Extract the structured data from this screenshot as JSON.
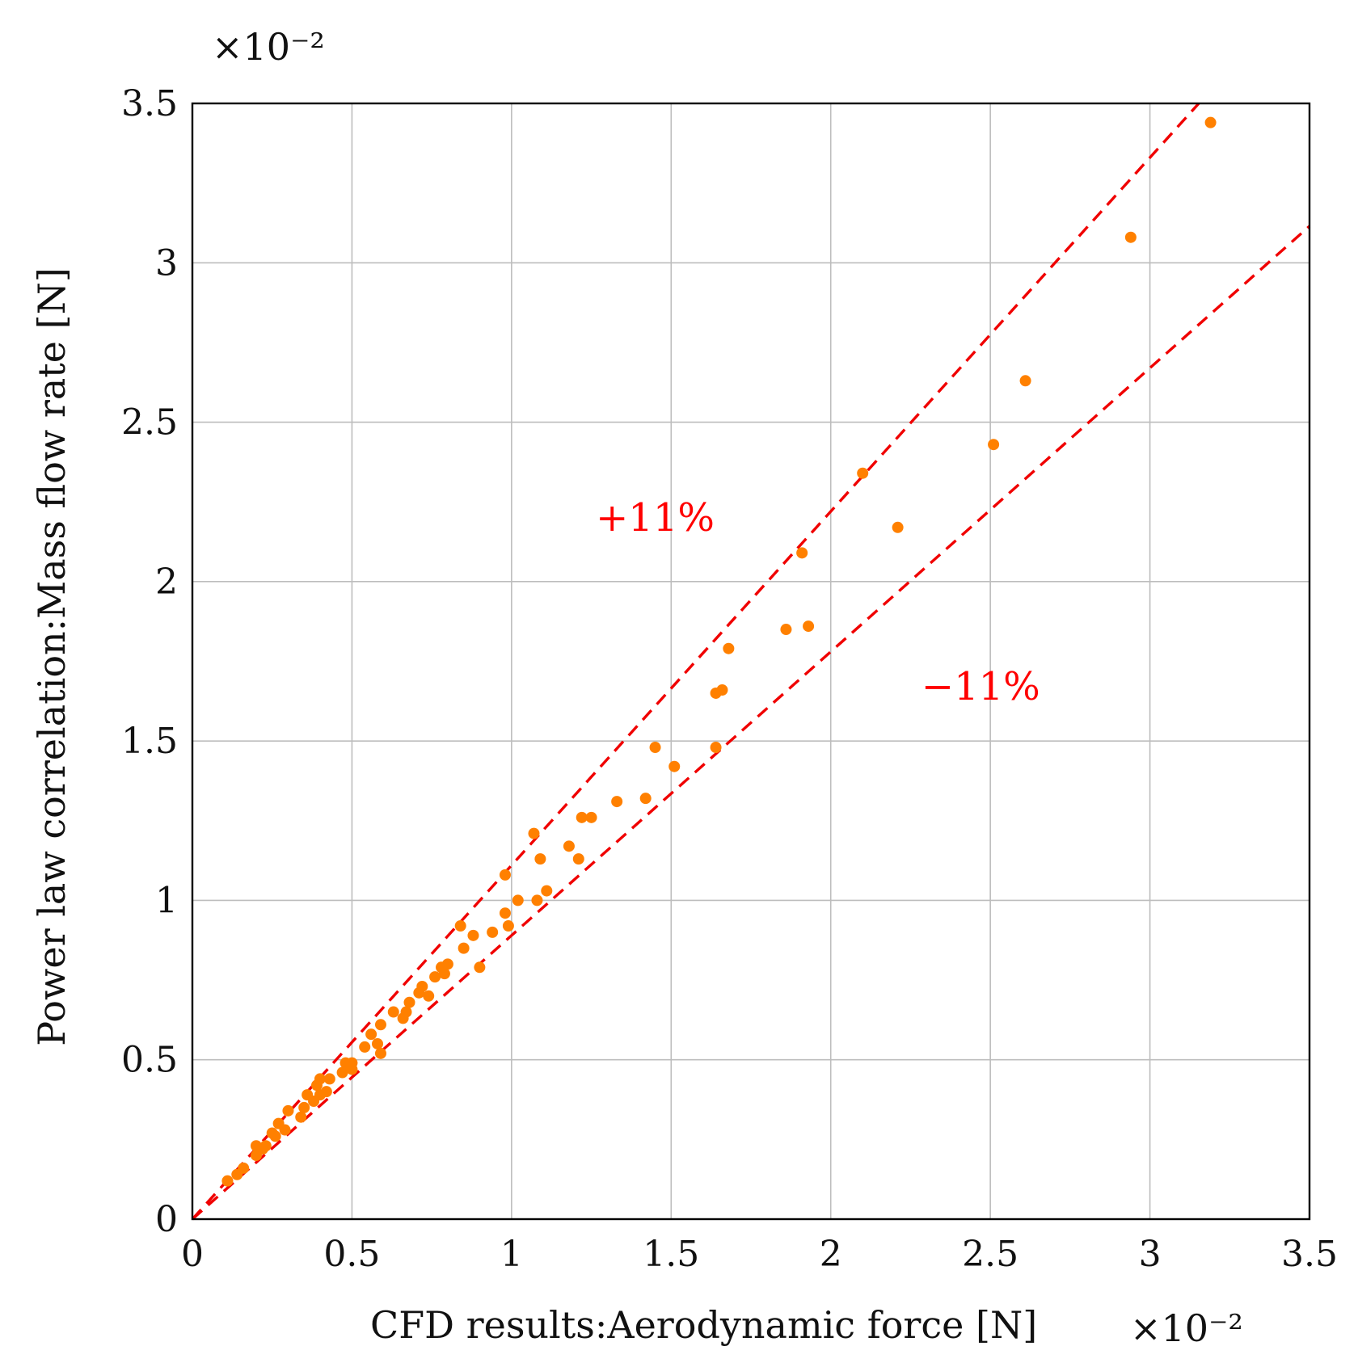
{
  "chart_data": {
    "type": "scatter",
    "xlabel": "CFD results:Aerodynamic force [N]",
    "ylabel": "Power law correlation:Mass flow rate [N]",
    "x_multiplier": "×10⁻²",
    "y_multiplier": "×10⁻²",
    "xlim": [
      0,
      3.5
    ],
    "ylim": [
      0,
      3.5
    ],
    "xticks": [
      "0",
      "0.5",
      "1",
      "1.5",
      "2",
      "2.5",
      "3",
      "3.5"
    ],
    "yticks": [
      "0",
      "0.5",
      "1",
      "1.5",
      "2",
      "2.5",
      "3",
      "3.5"
    ],
    "grid": true,
    "point_color": "#ff8000",
    "reference_lines": [
      {
        "label": "+11%",
        "slope": 1.11,
        "color": "#ff0000",
        "style": "dashed"
      },
      {
        "label": "−11%",
        "slope": 0.89,
        "color": "#ff0000",
        "style": "dashed"
      }
    ],
    "annotations": [
      {
        "text": "+11%",
        "x": 1.45,
        "y": 2.2
      },
      {
        "text": "−11%",
        "x": 2.47,
        "y": 1.67
      }
    ],
    "points": [
      [
        0.11,
        0.12
      ],
      [
        0.14,
        0.14
      ],
      [
        0.16,
        0.16
      ],
      [
        0.2,
        0.2
      ],
      [
        0.2,
        0.23
      ],
      [
        0.22,
        0.22
      ],
      [
        0.23,
        0.23
      ],
      [
        0.25,
        0.27
      ],
      [
        0.26,
        0.26
      ],
      [
        0.27,
        0.3
      ],
      [
        0.29,
        0.28
      ],
      [
        0.3,
        0.34
      ],
      [
        0.34,
        0.32
      ],
      [
        0.35,
        0.35
      ],
      [
        0.36,
        0.39
      ],
      [
        0.38,
        0.37
      ],
      [
        0.39,
        0.42
      ],
      [
        0.4,
        0.44
      ],
      [
        0.4,
        0.39
      ],
      [
        0.42,
        0.4
      ],
      [
        0.43,
        0.44
      ],
      [
        0.47,
        0.46
      ],
      [
        0.48,
        0.49
      ],
      [
        0.5,
        0.49
      ],
      [
        0.5,
        0.47
      ],
      [
        0.54,
        0.54
      ],
      [
        0.56,
        0.58
      ],
      [
        0.58,
        0.55
      ],
      [
        0.59,
        0.61
      ],
      [
        0.59,
        0.52
      ],
      [
        0.63,
        0.65
      ],
      [
        0.66,
        0.63
      ],
      [
        0.67,
        0.65
      ],
      [
        0.68,
        0.68
      ],
      [
        0.71,
        0.71
      ],
      [
        0.72,
        0.73
      ],
      [
        0.74,
        0.7
      ],
      [
        0.76,
        0.76
      ],
      [
        0.78,
        0.79
      ],
      [
        0.79,
        0.77
      ],
      [
        0.8,
        0.8
      ],
      [
        0.84,
        0.92
      ],
      [
        0.85,
        0.85
      ],
      [
        0.88,
        0.89
      ],
      [
        0.9,
        0.79
      ],
      [
        0.94,
        0.9
      ],
      [
        0.98,
        0.96
      ],
      [
        0.98,
        1.08
      ],
      [
        0.99,
        0.92
      ],
      [
        1.02,
        1.0
      ],
      [
        1.07,
        1.21
      ],
      [
        1.08,
        1.0
      ],
      [
        1.09,
        1.13
      ],
      [
        1.11,
        1.03
      ],
      [
        1.18,
        1.17
      ],
      [
        1.21,
        1.13
      ],
      [
        1.22,
        1.26
      ],
      [
        1.25,
        1.26
      ],
      [
        1.33,
        1.31
      ],
      [
        1.42,
        1.32
      ],
      [
        1.45,
        1.48
      ],
      [
        1.51,
        1.42
      ],
      [
        1.64,
        1.48
      ],
      [
        1.64,
        1.65
      ],
      [
        1.66,
        1.66
      ],
      [
        1.68,
        1.79
      ],
      [
        1.86,
        1.85
      ],
      [
        1.91,
        2.09
      ],
      [
        1.93,
        1.86
      ],
      [
        2.1,
        2.34
      ],
      [
        2.21,
        2.17
      ],
      [
        2.51,
        2.43
      ],
      [
        2.61,
        2.63
      ],
      [
        2.94,
        3.08
      ],
      [
        3.19,
        3.44
      ]
    ]
  }
}
